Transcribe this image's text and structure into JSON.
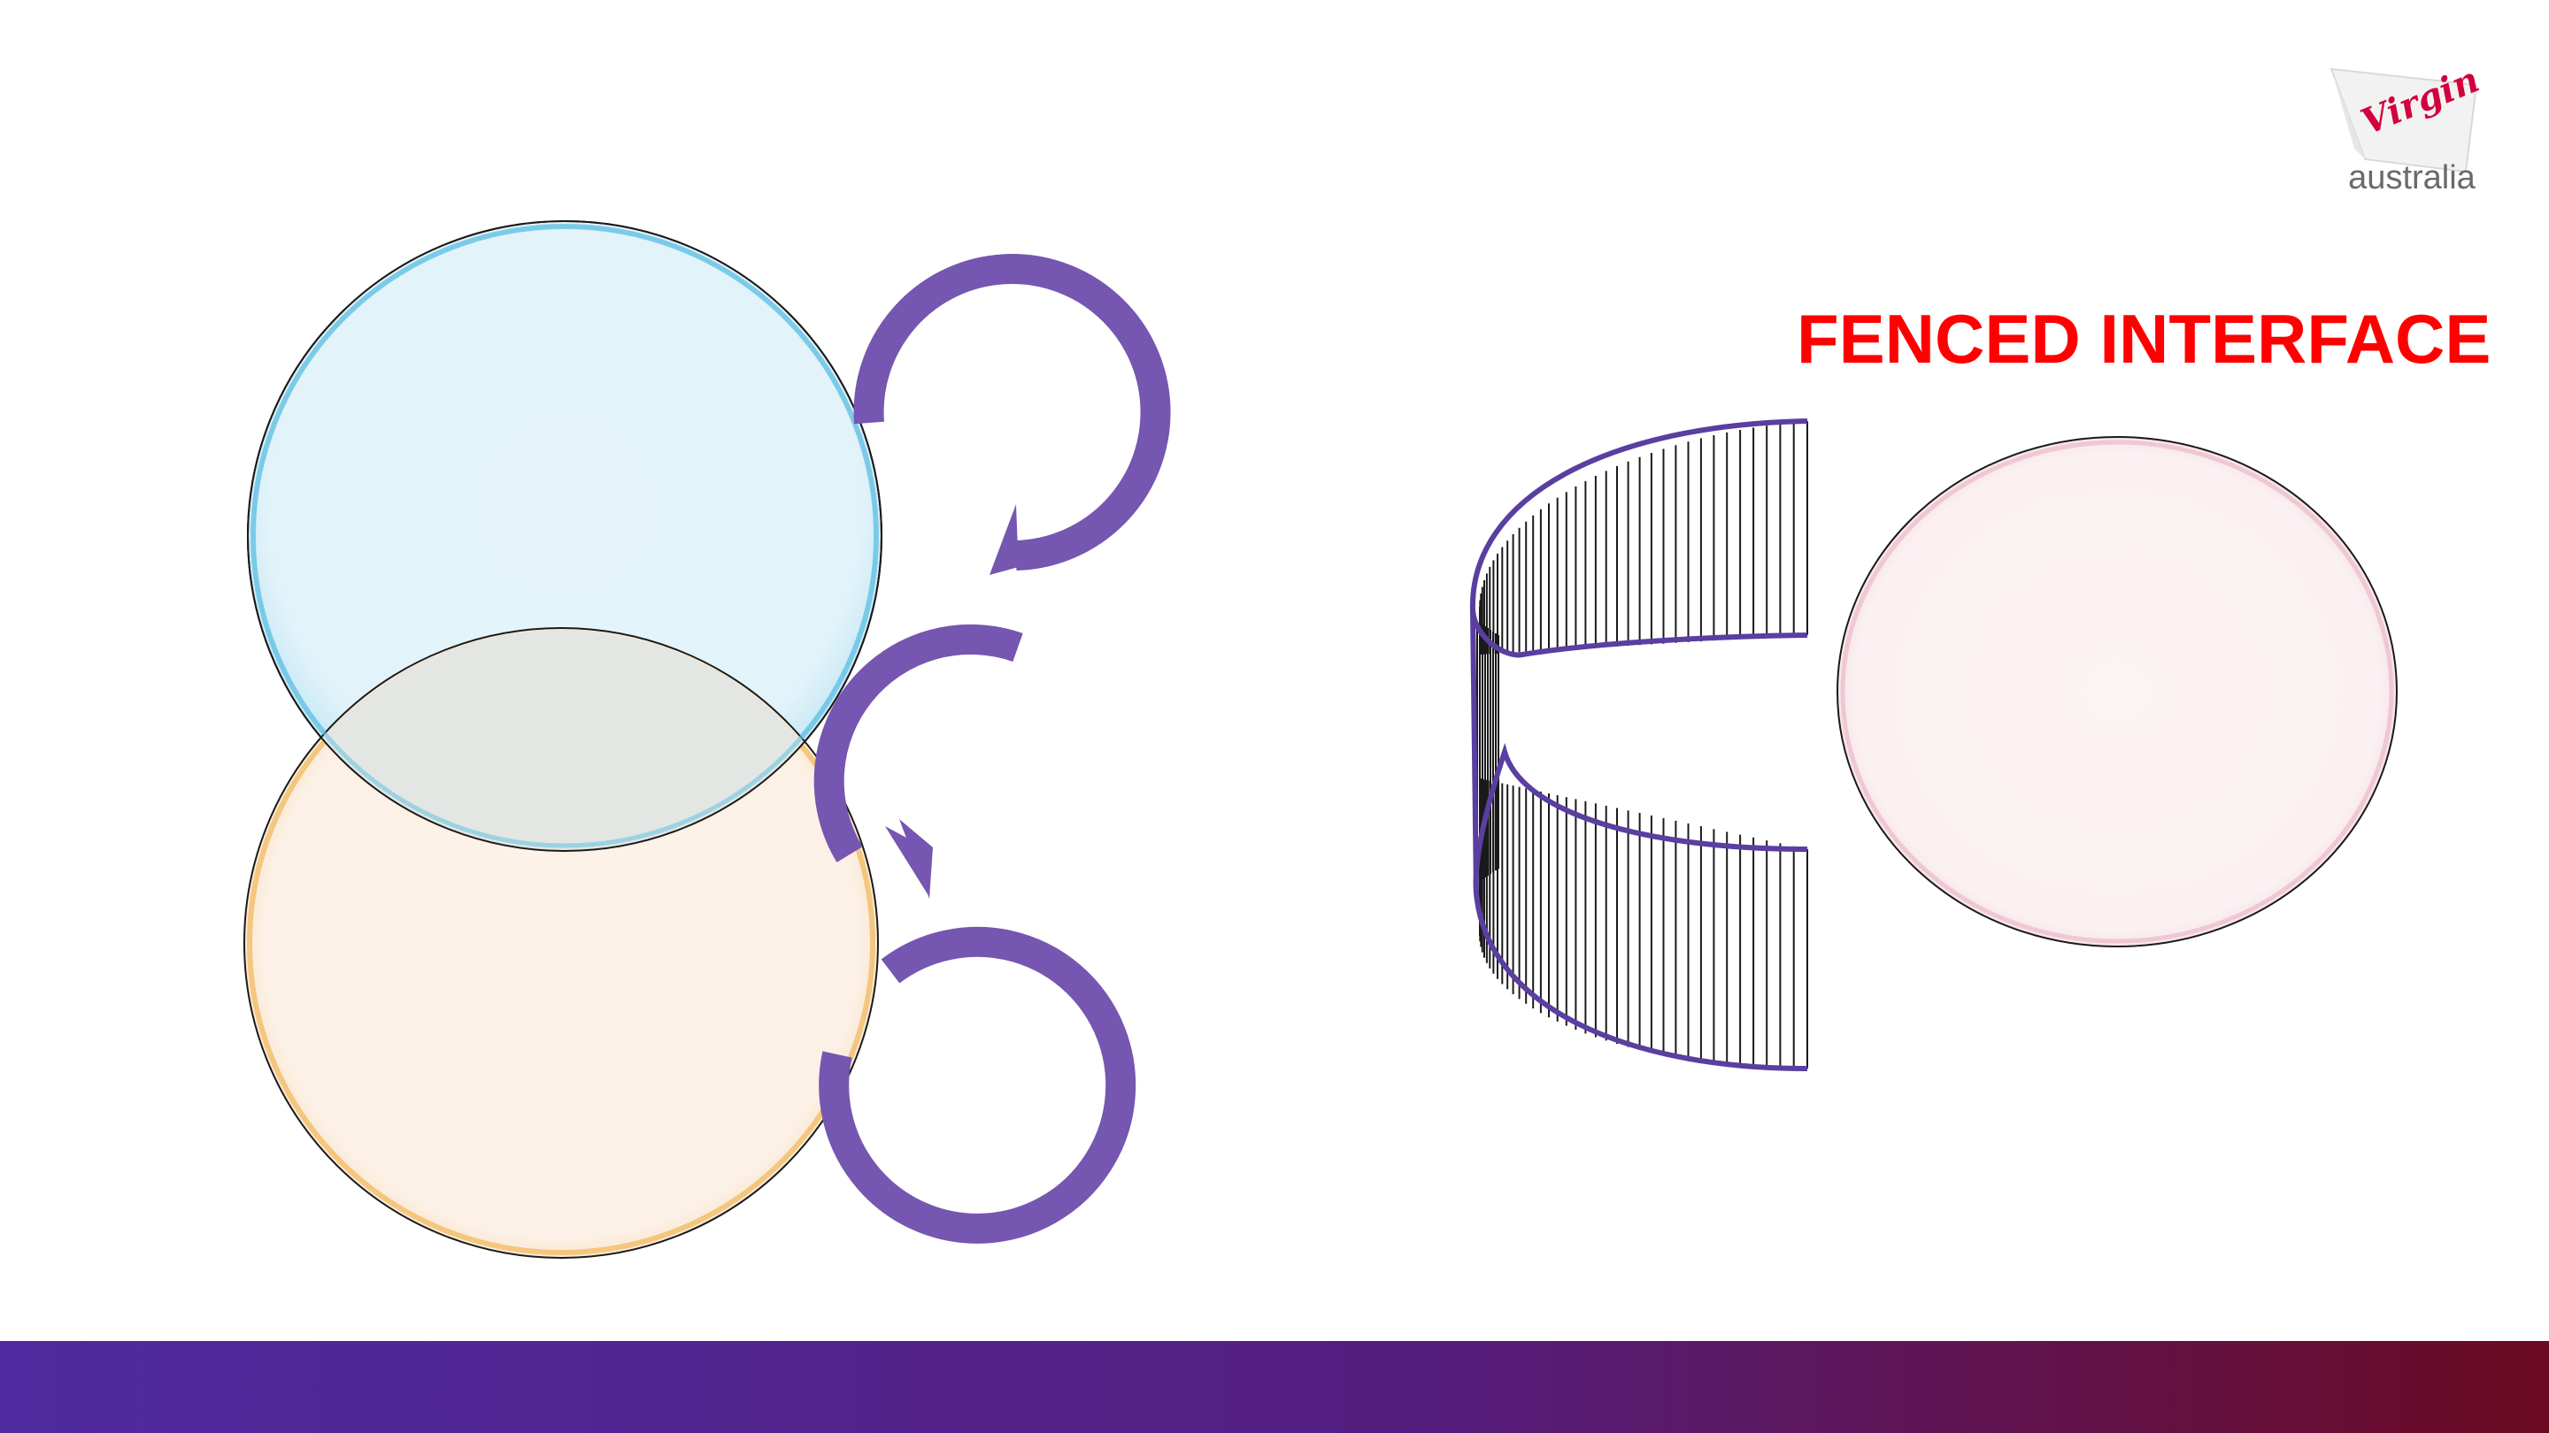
{
  "slide": {
    "title": "FENCED INTERFACE"
  },
  "logo": {
    "script_text": "Virgin",
    "word_text": "australia",
    "colors": {
      "script": "#d2003c",
      "word": "#6a6a6a"
    }
  },
  "colors": {
    "title": "#ff0000",
    "circle_blue_fill": "#e2f3fa",
    "circle_blue_stroke": "#5ab8de",
    "circle_orange_fill": "#fcf1e6",
    "circle_orange_stroke": "#f0b04a",
    "circle_overlap_fill": "#e3e6e2",
    "circle_pink_fill": "#fbf1f3",
    "circle_pink_stroke": "#e6a8b8",
    "arrow": "#7556b0",
    "fence": "#5a3ea0",
    "bar_start": "#4f2a9e",
    "bar_mid": "#541e80",
    "bar_end": "#6b0a22"
  },
  "icons": {
    "arrow_top": "curved-clockwise-arrow-icon",
    "arrow_middle": "curved-counterclockwise-arrow-icon",
    "arrow_bottom": "circular-arrow-icon"
  }
}
